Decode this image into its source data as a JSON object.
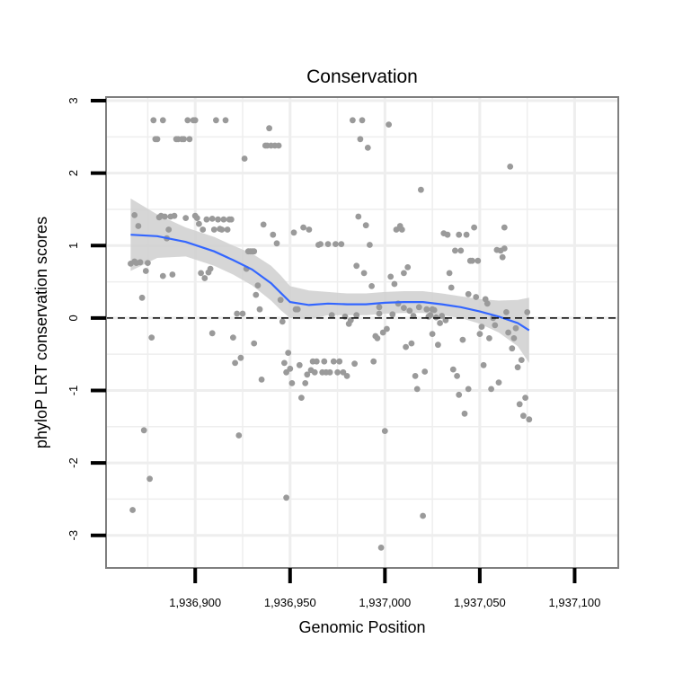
{
  "chart_data": {
    "type": "scatter",
    "title": "Conservation",
    "xlabel": "Genomic Position",
    "ylabel": "phyloP LRT conservation scores",
    "xlim": [
      1936853,
      1937123
    ],
    "ylim": [
      -3.45,
      3.05
    ],
    "x_ticks": [
      1936900,
      1936950,
      1937000,
      1937050,
      1937100
    ],
    "x_tick_labels": [
      "1,936,900",
      "1,936,950",
      "1,937,000",
      "1,937,050",
      "1,937,100"
    ],
    "y_ticks": [
      3,
      2,
      1,
      0,
      -1,
      -2,
      -3
    ],
    "y_tick_labels": [
      "3",
      "2",
      "1",
      "0",
      "-1",
      "-2",
      "-3"
    ],
    "reference_line": {
      "y": 0,
      "style": "dashed"
    },
    "colors": {
      "points": "#9a9a9a",
      "smooth": "#3366ff",
      "band": "#cfcfcf",
      "grid": "#eeeeee",
      "frame": "#7f7f7f"
    },
    "points": [
      [
        1936866,
        0.75
      ],
      [
        1936867,
        -2.65
      ],
      [
        1936868,
        1.42
      ],
      [
        1936868,
        0.78
      ],
      [
        1936869,
        0.76
      ],
      [
        1936870,
        1.27
      ],
      [
        1936871,
        0.77
      ],
      [
        1936872,
        0.28
      ],
      [
        1936873,
        -1.55
      ],
      [
        1936874,
        0.65
      ],
      [
        1936875,
        0.76
      ],
      [
        1936876,
        -2.22
      ],
      [
        1936877,
        -0.27
      ],
      [
        1936878,
        2.73
      ],
      [
        1936879,
        2.47
      ],
      [
        1936880,
        2.47
      ],
      [
        1936881,
        1.39
      ],
      [
        1936882,
        1.41
      ],
      [
        1936883,
        2.73
      ],
      [
        1936883,
        0.58
      ],
      [
        1936884,
        1.4
      ],
      [
        1936885,
        1.1
      ],
      [
        1936886,
        1.22
      ],
      [
        1936887,
        1.4
      ],
      [
        1936888,
        0.6
      ],
      [
        1936889,
        1.41
      ],
      [
        1936890,
        2.47
      ],
      [
        1936891,
        2.47
      ],
      [
        1936893,
        2.47
      ],
      [
        1936894,
        2.47
      ],
      [
        1936895,
        1.38
      ],
      [
        1936896,
        2.73
      ],
      [
        1936897,
        2.47
      ],
      [
        1936899,
        2.73
      ],
      [
        1936900,
        2.73
      ],
      [
        1936900,
        1.41
      ],
      [
        1936901,
        1.38
      ],
      [
        1936902,
        1.3
      ],
      [
        1936903,
        0.62
      ],
      [
        1936904,
        1.22
      ],
      [
        1936905,
        0.55
      ],
      [
        1936906,
        1.36
      ],
      [
        1936907,
        0.63
      ],
      [
        1936908,
        0.68
      ],
      [
        1936909,
        -0.21
      ],
      [
        1936909,
        1.37
      ],
      [
        1936910,
        1.22
      ],
      [
        1936911,
        2.73
      ],
      [
        1936912,
        1.36
      ],
      [
        1936913,
        1.23
      ],
      [
        1936914,
        1.22
      ],
      [
        1936915,
        1.36
      ],
      [
        1936916,
        2.73
      ],
      [
        1936917,
        1.22
      ],
      [
        1936918,
        1.36
      ],
      [
        1936919,
        1.36
      ],
      [
        1936920,
        -0.27
      ],
      [
        1936921,
        -0.62
      ],
      [
        1936922,
        0.06
      ],
      [
        1936923,
        -1.62
      ],
      [
        1936924,
        -0.55
      ],
      [
        1936925,
        0.06
      ],
      [
        1936926,
        2.2
      ],
      [
        1936927,
        0.68
      ],
      [
        1936928,
        0.92
      ],
      [
        1936929,
        0.92
      ],
      [
        1936930,
        0.92
      ],
      [
        1936931,
        0.92
      ],
      [
        1936931,
        -0.35
      ],
      [
        1936932,
        0.32
      ],
      [
        1936933,
        0.45
      ],
      [
        1936934,
        0.12
      ],
      [
        1936935,
        -0.85
      ],
      [
        1936936,
        1.29
      ],
      [
        1936937,
        2.38
      ],
      [
        1936938,
        2.38
      ],
      [
        1936939,
        2.62
      ],
      [
        1936940,
        2.38
      ],
      [
        1936941,
        1.15
      ],
      [
        1936942,
        2.38
      ],
      [
        1936943,
        1.03
      ],
      [
        1936944,
        2.38
      ],
      [
        1936945,
        0.25
      ],
      [
        1936946,
        -0.05
      ],
      [
        1936947,
        -0.62
      ],
      [
        1936948,
        -0.75
      ],
      [
        1936948,
        -2.48
      ],
      [
        1936949,
        -0.48
      ],
      [
        1936950,
        -0.7
      ],
      [
        1936951,
        -0.9
      ],
      [
        1936952,
        1.18
      ],
      [
        1936953,
        0.12
      ],
      [
        1936954,
        0.12
      ],
      [
        1936955,
        -0.65
      ],
      [
        1936956,
        -1.1
      ],
      [
        1936957,
        1.25
      ],
      [
        1936958,
        -0.9
      ],
      [
        1936959,
        -0.78
      ],
      [
        1936960,
        1.22
      ],
      [
        1936961,
        -0.72
      ],
      [
        1936962,
        -0.6
      ],
      [
        1936963,
        -0.75
      ],
      [
        1936964,
        -0.6
      ],
      [
        1936965,
        1.01
      ],
      [
        1936966,
        1.02
      ],
      [
        1936967,
        -0.75
      ],
      [
        1936968,
        -0.6
      ],
      [
        1936969,
        -0.75
      ],
      [
        1936970,
        1.02
      ],
      [
        1936971,
        -0.75
      ],
      [
        1936972,
        0.04
      ],
      [
        1936973,
        -0.6
      ],
      [
        1936974,
        1.02
      ],
      [
        1936975,
        -0.75
      ],
      [
        1936976,
        -0.6
      ],
      [
        1936977,
        1.02
      ],
      [
        1936978,
        -0.75
      ],
      [
        1936979,
        0.02
      ],
      [
        1936980,
        -0.8
      ],
      [
        1936981,
        -0.08
      ],
      [
        1936982,
        -0.03
      ],
      [
        1936983,
        2.73
      ],
      [
        1936984,
        -0.63
      ],
      [
        1936985,
        0.72
      ],
      [
        1936986,
        1.4
      ],
      [
        1936987,
        2.47
      ],
      [
        1936988,
        2.73
      ],
      [
        1936989,
        0.62
      ],
      [
        1936990,
        1.28
      ],
      [
        1936991,
        2.35
      ],
      [
        1936992,
        1.01
      ],
      [
        1936993,
        0.44
      ],
      [
        1936994,
        -0.6
      ],
      [
        1936995,
        -0.25
      ],
      [
        1936996,
        -0.28
      ],
      [
        1936997,
        0.06
      ],
      [
        1936998,
        -3.17
      ],
      [
        1936999,
        -0.2
      ],
      [
        1937000,
        -1.56
      ],
      [
        1937001,
        -0.15
      ],
      [
        1937002,
        2.67
      ],
      [
        1937003,
        0.57
      ],
      [
        1937004,
        0.05
      ],
      [
        1937005,
        0.47
      ],
      [
        1937006,
        1.22
      ],
      [
        1937007,
        0.2
      ],
      [
        1937008,
        1.27
      ],
      [
        1937009,
        1.22
      ],
      [
        1937010,
        0.62
      ],
      [
        1937011,
        -0.4
      ],
      [
        1937012,
        0.7
      ],
      [
        1937013,
        0.1
      ],
      [
        1937014,
        -0.35
      ],
      [
        1937015,
        0.03
      ],
      [
        1937016,
        -0.8
      ],
      [
        1937017,
        -0.98
      ],
      [
        1937018,
        0.15
      ],
      [
        1937019,
        1.77
      ],
      [
        1937020,
        -2.73
      ],
      [
        1937021,
        -0.74
      ],
      [
        1937022,
        0.12
      ],
      [
        1937023,
        0.02
      ],
      [
        1937024,
        0.04
      ],
      [
        1937025,
        -0.22
      ],
      [
        1937026,
        0.11
      ],
      [
        1937027,
        0.01
      ],
      [
        1937028,
        -0.37
      ],
      [
        1937029,
        -0.07
      ],
      [
        1937030,
        0.03
      ],
      [
        1937031,
        1.17
      ],
      [
        1937032,
        -0.03
      ],
      [
        1937033,
        1.15
      ],
      [
        1937034,
        0.62
      ],
      [
        1937035,
        0.42
      ],
      [
        1937036,
        -0.71
      ],
      [
        1937037,
        0.93
      ],
      [
        1937038,
        -0.8
      ],
      [
        1937039,
        -1.06
      ],
      [
        1937040,
        0.93
      ],
      [
        1937041,
        -0.3
      ],
      [
        1937042,
        -1.32
      ],
      [
        1937043,
        1.15
      ],
      [
        1937044,
        0.33
      ],
      [
        1937045,
        0.79
      ],
      [
        1937046,
        0.79
      ],
      [
        1937047,
        1.25
      ],
      [
        1937048,
        0.29
      ],
      [
        1937049,
        0.79
      ],
      [
        1937050,
        -0.22
      ],
      [
        1937051,
        -0.12
      ],
      [
        1937052,
        -0.65
      ],
      [
        1937053,
        0.26
      ],
      [
        1937054,
        0.2
      ],
      [
        1937055,
        -0.28
      ],
      [
        1937056,
        -0.98
      ],
      [
        1937057,
        0.0
      ],
      [
        1937058,
        -0.1
      ],
      [
        1937059,
        0.94
      ],
      [
        1937060,
        -0.89
      ],
      [
        1937061,
        0.93
      ],
      [
        1937062,
        0.84
      ],
      [
        1937063,
        0.96
      ],
      [
        1937064,
        0.08
      ],
      [
        1937065,
        -0.2
      ],
      [
        1937066,
        2.09
      ],
      [
        1937067,
        -0.42
      ],
      [
        1937068,
        -0.28
      ],
      [
        1937069,
        -0.14
      ],
      [
        1937070,
        -0.68
      ],
      [
        1937071,
        -1.19
      ],
      [
        1937072,
        -0.58
      ],
      [
        1937073,
        -1.35
      ],
      [
        1937074,
        -1.1
      ],
      [
        1937075,
        0.08
      ],
      [
        1937076,
        -1.4
      ],
      [
        1937063,
        1.25
      ],
      [
        1937044,
        -0.98
      ],
      [
        1937039,
        1.15
      ],
      [
        1937025,
        0.12
      ],
      [
        1937010,
        0.14
      ],
      [
        1936997,
        0.15
      ],
      [
        1936985,
        0.04
      ]
    ],
    "smooth": {
      "x": [
        1936866,
        1936880,
        1936895,
        1936910,
        1936920,
        1936930,
        1936940,
        1936945,
        1936950,
        1936960,
        1936970,
        1936980,
        1936990,
        1937000,
        1937010,
        1937020,
        1937030,
        1937040,
        1937050,
        1937060,
        1937070,
        1937076
      ],
      "y": [
        1.15,
        1.13,
        1.05,
        0.92,
        0.8,
        0.67,
        0.48,
        0.35,
        0.22,
        0.18,
        0.2,
        0.19,
        0.19,
        0.21,
        0.22,
        0.22,
        0.19,
        0.15,
        0.09,
        0.02,
        -0.07,
        -0.17
      ],
      "se": [
        0.5,
        0.3,
        0.2,
        0.2,
        0.2,
        0.22,
        0.24,
        0.24,
        0.22,
        0.2,
        0.16,
        0.15,
        0.15,
        0.15,
        0.15,
        0.15,
        0.15,
        0.15,
        0.17,
        0.22,
        0.32,
        0.45
      ]
    }
  }
}
